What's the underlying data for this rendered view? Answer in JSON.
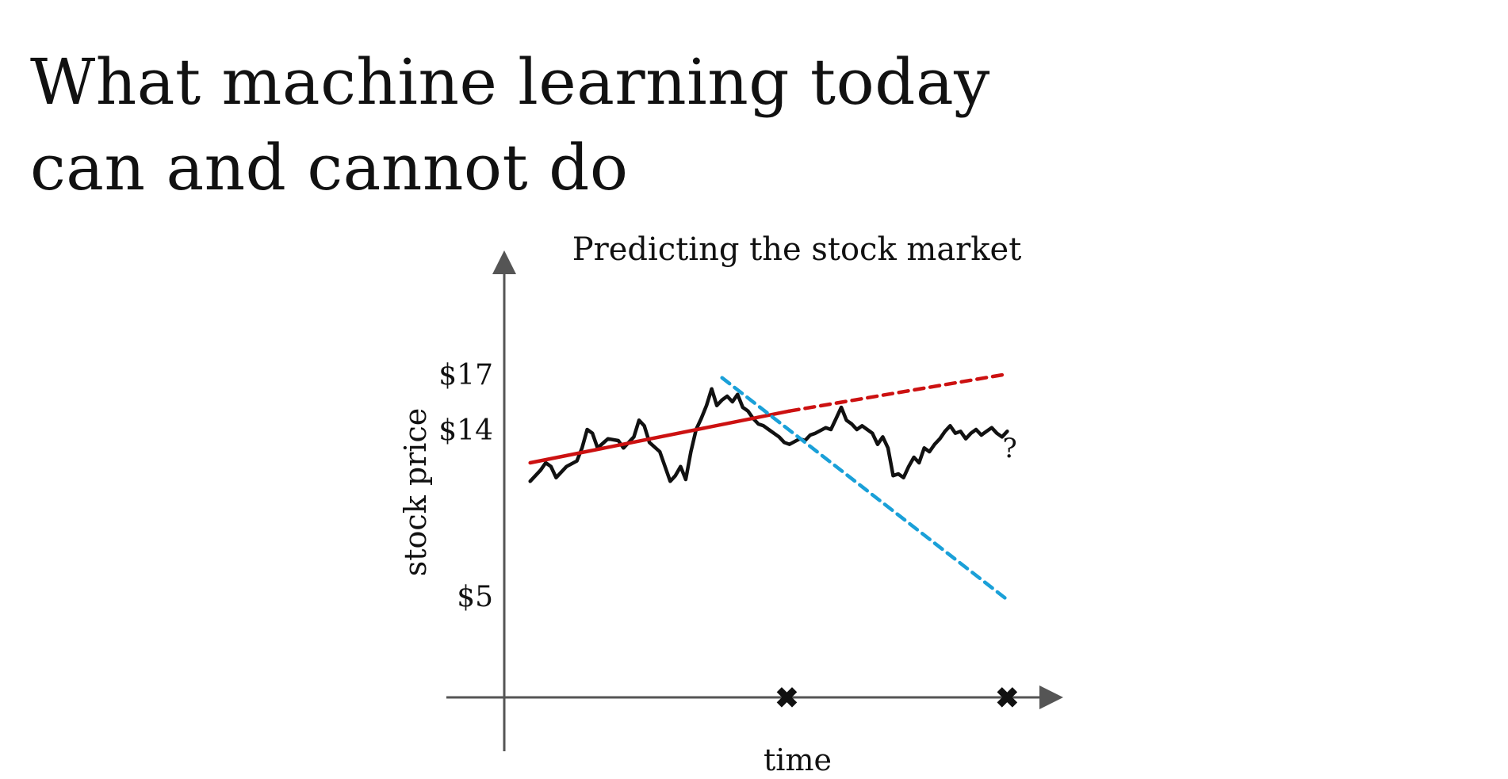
{
  "slide": {
    "title_lines": [
      "What machine learning today",
      "can and cannot do"
    ]
  },
  "chart_data": {
    "type": "line",
    "title": "Predicting the stock market",
    "xlabel": "time",
    "ylabel": "stock price",
    "y_tick_labels": [
      {
        "label": "$17",
        "value": 17
      },
      {
        "label": "$14",
        "value": 14
      },
      {
        "label": "$5",
        "value": 5
      }
    ],
    "x_markers": [
      {
        "symbol": "✖",
        "x": 0.545
      },
      {
        "symbol": "✖",
        "x": 0.97
      }
    ],
    "annotation": "?",
    "grid": false,
    "legend": "none",
    "colors": {
      "axis": "#555555",
      "price": "#111111",
      "upward_trend": "#cc1111",
      "downward_trend": "#1aa0d8"
    },
    "series": [
      {
        "style": "solid-black",
        "x": [
          0.05,
          0.07,
          0.08,
          0.09,
          0.1,
          0.12,
          0.14,
          0.15,
          0.16,
          0.17,
          0.18,
          0.2,
          0.22,
          0.23,
          0.25,
          0.26,
          0.27,
          0.28,
          0.3,
          0.32,
          0.33,
          0.34,
          0.35,
          0.36,
          0.37,
          0.38,
          0.39,
          0.4,
          0.41,
          0.42,
          0.43,
          0.44,
          0.45,
          0.46,
          0.47,
          0.48,
          0.49,
          0.5,
          0.51,
          0.52,
          0.53,
          0.54,
          0.55,
          0.57,
          0.58,
          0.59,
          0.6,
          0.62,
          0.63,
          0.64,
          0.65,
          0.66,
          0.67,
          0.68,
          0.69,
          0.7,
          0.71,
          0.72,
          0.73,
          0.74,
          0.75,
          0.76,
          0.77,
          0.78,
          0.79,
          0.8,
          0.81,
          0.82,
          0.83,
          0.84,
          0.85,
          0.86,
          0.87,
          0.88,
          0.89,
          0.9,
          0.91,
          0.92,
          0.93,
          0.94,
          0.95,
          0.96,
          0.97
        ],
        "y": [
          11.2,
          11.8,
          12.2,
          12.0,
          11.4,
          12.0,
          12.3,
          13.0,
          14.0,
          13.8,
          13.0,
          13.5,
          13.4,
          13.0,
          13.6,
          14.5,
          14.2,
          13.3,
          12.8,
          11.2,
          11.5,
          12.0,
          11.3,
          12.8,
          14.0,
          14.6,
          15.3,
          16.2,
          15.3,
          15.6,
          15.8,
          15.5,
          15.9,
          15.2,
          15.0,
          14.6,
          14.3,
          14.2,
          14.0,
          13.8,
          13.6,
          13.3,
          13.2,
          13.5,
          13.4,
          13.7,
          13.8,
          14.1,
          14.0,
          14.6,
          15.2,
          14.5,
          14.3,
          14.0,
          14.2,
          14.0,
          13.8,
          13.2,
          13.6,
          13.0,
          11.5,
          11.6,
          11.4,
          12.0,
          12.5,
          12.2,
          13.0,
          12.8,
          13.2,
          13.5,
          13.9,
          14.2,
          13.8,
          13.9,
          13.5,
          13.8,
          14.0,
          13.7,
          13.9,
          14.1,
          13.8,
          13.6,
          13.9
        ]
      },
      {
        "style": "solid-red",
        "x": [
          0.05,
          0.55
        ],
        "y": [
          12.2,
          15.0
        ]
      },
      {
        "style": "dashed-red",
        "x": [
          0.55,
          0.97
        ],
        "y": [
          15.0,
          17.0
        ]
      },
      {
        "style": "dashed-blue",
        "x": [
          0.42,
          0.97
        ],
        "y": [
          16.8,
          4.8
        ]
      }
    ]
  }
}
